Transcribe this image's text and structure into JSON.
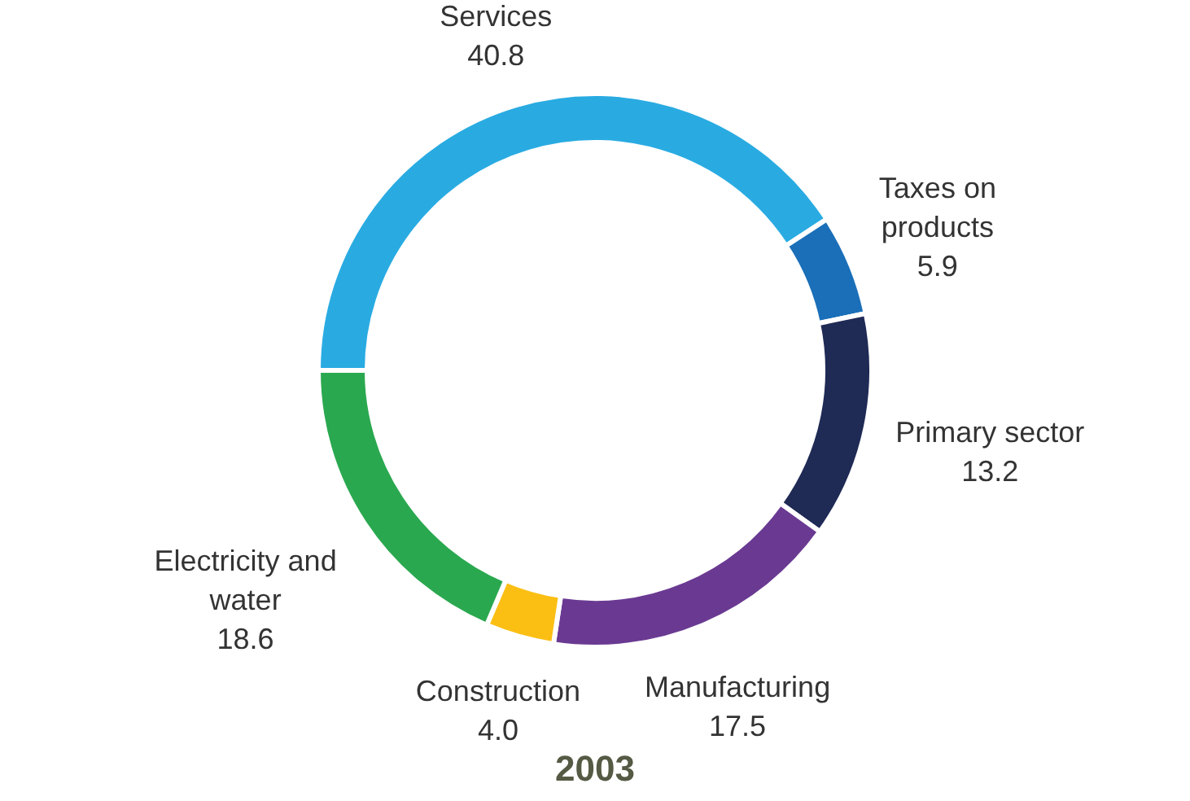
{
  "chart_data": {
    "type": "donut",
    "title": "2003",
    "categories": [
      "Services",
      "Taxes on products",
      "Primary sector",
      "Manufacturing",
      "Construction",
      "Electricity and water"
    ],
    "values": [
      40.8,
      5.9,
      13.2,
      17.5,
      4.0,
      18.6
    ],
    "value_labels": [
      "40.8",
      "5.9",
      "13.2",
      "17.5",
      "4.0",
      "18.6"
    ],
    "colors": [
      "#29abe2",
      "#1a6fb8",
      "#1f2a55",
      "#6a3a92",
      "#fbbf14",
      "#2aa84f"
    ]
  }
}
